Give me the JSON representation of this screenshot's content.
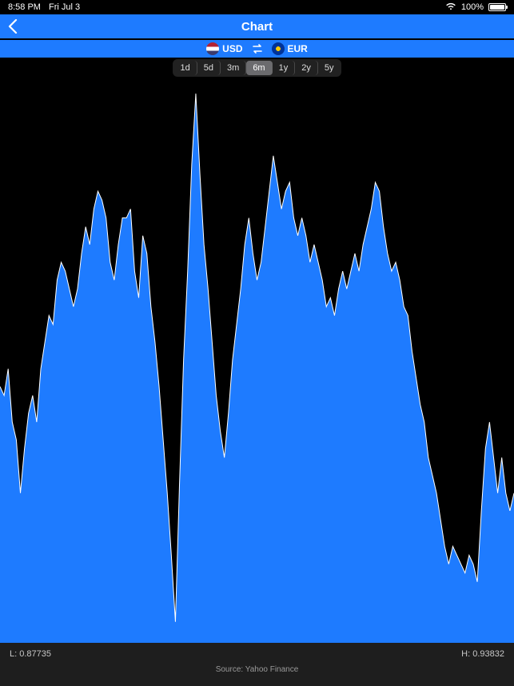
{
  "status_bar": {
    "time": "8:58 PM",
    "date": "Fri Jul 3",
    "wifi_icon": "wifi",
    "battery_pct_label": "100%",
    "battery_fill_pct": 100
  },
  "nav": {
    "title": "Chart",
    "back_icon": "chevron-left",
    "bar_color": "#1e7bff"
  },
  "currency": {
    "from": {
      "code": "USD",
      "flag_bg": "linear-gradient(180deg,#b22234 0 33%,#ffffff 33% 66%,#3c3b6e 66% 100%)"
    },
    "swap_icon": "arrows-swap",
    "to": {
      "code": "EUR",
      "flag_bg": "radial-gradient(circle at 50% 50%, #ffcc00 0 25%, #003399 26% 100%)"
    }
  },
  "time_ranges": {
    "options": [
      "1d",
      "5d",
      "3m",
      "6m",
      "1y",
      "2y",
      "5y"
    ],
    "selected_index": 3,
    "bg": "rgba(60,60,60,0.55)",
    "selected_bg": "#6b6b6e"
  },
  "chart": {
    "type": "area",
    "fill_color": "#1e7bff",
    "stroke_color": "#ffffff",
    "stroke_width": 1,
    "background_color": "#000000",
    "y_low": 0.87735,
    "y_high": 0.93832,
    "points": [
      0.905,
      0.904,
      0.907,
      0.901,
      0.899,
      0.893,
      0.898,
      0.902,
      0.904,
      0.901,
      0.907,
      0.91,
      0.913,
      0.912,
      0.917,
      0.919,
      0.918,
      0.916,
      0.914,
      0.916,
      0.92,
      0.923,
      0.921,
      0.925,
      0.927,
      0.926,
      0.924,
      0.919,
      0.917,
      0.921,
      0.924,
      0.924,
      0.925,
      0.918,
      0.915,
      0.922,
      0.92,
      0.914,
      0.91,
      0.905,
      0.899,
      0.893,
      0.886,
      0.8785,
      0.894,
      0.908,
      0.918,
      0.93,
      0.938,
      0.929,
      0.921,
      0.916,
      0.91,
      0.904,
      0.9,
      0.897,
      0.902,
      0.908,
      0.912,
      0.916,
      0.921,
      0.924,
      0.92,
      0.917,
      0.919,
      0.923,
      0.927,
      0.931,
      0.928,
      0.925,
      0.927,
      0.928,
      0.924,
      0.922,
      0.924,
      0.922,
      0.919,
      0.921,
      0.919,
      0.917,
      0.914,
      0.915,
      0.913,
      0.916,
      0.918,
      0.916,
      0.918,
      0.92,
      0.918,
      0.921,
      0.923,
      0.925,
      0.928,
      0.927,
      0.923,
      0.92,
      0.918,
      0.919,
      0.917,
      0.914,
      0.913,
      0.909,
      0.906,
      0.903,
      0.901,
      0.897,
      0.895,
      0.893,
      0.89,
      0.887,
      0.885,
      0.887,
      0.886,
      0.885,
      0.884,
      0.886,
      0.885,
      0.883,
      0.891,
      0.898,
      0.901,
      0.897,
      0.893,
      0.897,
      0.893,
      0.891,
      0.893
    ]
  },
  "footer": {
    "low_label": "L: 0.87735",
    "high_label": "H: 0.93832",
    "source_label": "Source: Yahoo Finance",
    "bg": "#1e1e1e"
  }
}
